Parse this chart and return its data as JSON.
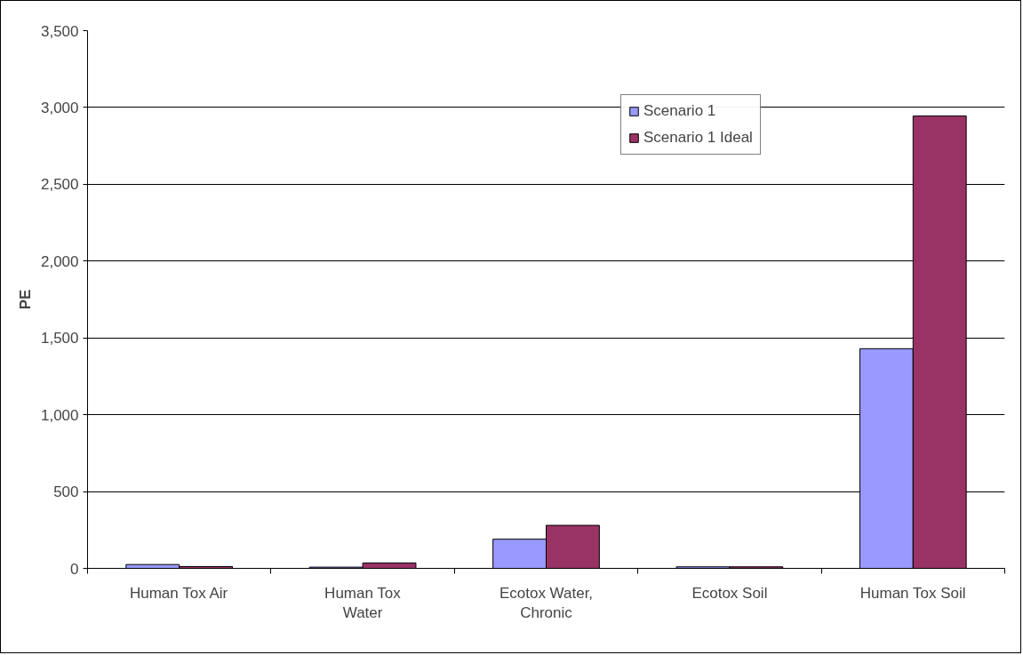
{
  "chart_data": {
    "type": "bar",
    "ylabel": "PE",
    "categories": [
      "Human Tox Air",
      "Human Tox\nWater",
      "Ecotox Water,\nChronic",
      "Ecotox Soil",
      "Human Tox Soil"
    ],
    "series": [
      {
        "name": "Scenario 1",
        "color": "#9999ff",
        "values": [
          25,
          8,
          190,
          10,
          1430
        ]
      },
      {
        "name": "Scenario 1 Ideal",
        "color": "#993366",
        "values": [
          12,
          35,
          280,
          10,
          2945
        ]
      }
    ],
    "ylim": [
      0,
      3500
    ],
    "yticks": [
      0,
      500,
      {
        "value": 1000,
        "label": "1,000"
      },
      {
        "value": 1500,
        "label": "1,500"
      },
      {
        "value": 2000,
        "label": "2,000"
      },
      {
        "value": 2500,
        "label": "2,500"
      },
      {
        "value": 3000,
        "label": "3,000"
      },
      {
        "value": 3500,
        "label": "3,500"
      }
    ],
    "grid": "y",
    "legend": "top right"
  }
}
